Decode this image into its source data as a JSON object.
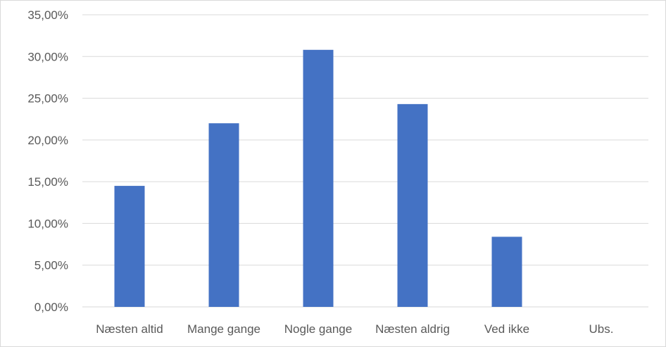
{
  "chart_data": {
    "type": "bar",
    "categories": [
      "Næsten altid",
      "Mange gange",
      "Nogle gange",
      "Næsten aldrig",
      "Ved ikke",
      "Ubs."
    ],
    "values": [
      14.5,
      22.0,
      30.8,
      24.3,
      8.4,
      0.0
    ],
    "y_ticks": [
      "0,00%",
      "5,00%",
      "10,00%",
      "15,00%",
      "20,00%",
      "25,00%",
      "30,00%",
      "35,00%"
    ],
    "ylim": [
      0,
      35
    ],
    "grid": true,
    "legend": "none",
    "bar_color": "#4472c4"
  }
}
